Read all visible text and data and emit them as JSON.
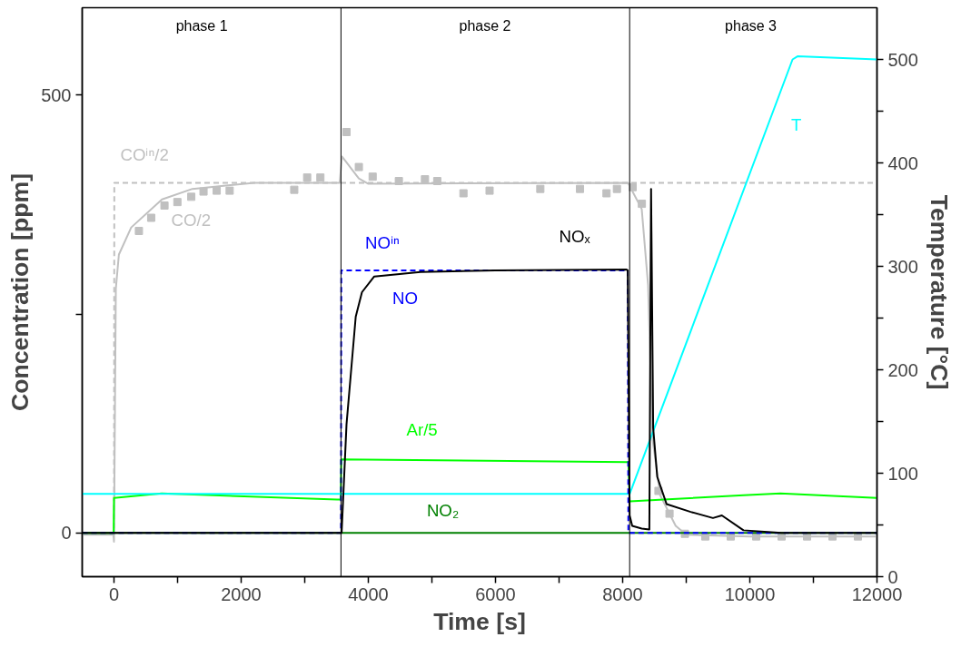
{
  "chart_data": {
    "type": "line",
    "xlabel": "Time [s]",
    "ylabel": "Concentration [ppm]",
    "y2label": "Temperature [°C]",
    "xlim": [
      -500,
      12000
    ],
    "xticks": [
      0,
      2000,
      4000,
      6000,
      8000,
      10000,
      12000,
      {
        "value": 1000,
        "label": null
      },
      {
        "value": 3000,
        "label": null
      },
      {
        "value": 5000,
        "label": null
      },
      {
        "value": 7000,
        "label": null
      },
      {
        "value": 9000,
        "label": null
      },
      {
        "value": 11000,
        "label": null
      }
    ],
    "ylim": [
      -50,
      600
    ],
    "yticks": [
      0,
      500,
      {
        "value": 250,
        "label": null
      }
    ],
    "y2lim": [
      0,
      550
    ],
    "y2ticks": [
      0,
      100,
      200,
      300,
      400,
      500,
      {
        "value": 50,
        "label": null
      },
      {
        "value": 150,
        "label": null
      },
      {
        "value": 250,
        "label": null
      },
      {
        "value": 350,
        "label": null
      },
      {
        "value": 450,
        "label": null
      }
    ],
    "grid": false,
    "series": [
      {
        "name": "COⁱⁿ/2",
        "color": "#c0c0c0",
        "line_style": "dashed",
        "x": [
          -500,
          0,
          5,
          12000
        ],
        "values": [
          0,
          0,
          400,
          400
        ]
      },
      {
        "name": "CO/2",
        "color": "#c0c0c0",
        "x": [
          -500,
          -10,
          0,
          29,
          77,
          271,
          755,
          1234,
          2206,
          3550,
          3585,
          3850,
          3995,
          8084,
          8300,
          8400,
          8470,
          8590,
          8834,
          9000,
          10000,
          12000
        ],
        "values": [
          -2,
          -2,
          -10,
          279,
          318,
          349,
          381,
          393,
          400,
          400,
          430,
          405,
          399,
          400,
          370,
          283,
          107,
          43,
          8,
          -2,
          -4,
          -4
        ]
      },
      {
        "type": "scatter",
        "marker": "square",
        "color": "#c0c0c0",
        "x": [
          392,
          585,
          794,
          997,
          1215,
          1408,
          1615,
          1819,
          2835,
          3038,
          3246,
          3657,
          3851,
          4068,
          4480,
          4891,
          5084,
          5496,
          5907,
          6705,
          7329,
          7746,
          7910,
          8157,
          8302,
          8563,
          8737,
          8979,
          9300,
          9700,
          10100,
          10500,
          10900,
          11300,
          11700
        ],
        "values": [
          345,
          360,
          374,
          378,
          384,
          390,
          391,
          391,
          392,
          406,
          406,
          458,
          418,
          407,
          402,
          404,
          402,
          388,
          391,
          393,
          393,
          388,
          393,
          395,
          376,
          48,
          22,
          -1,
          -4,
          -4,
          -4,
          -4,
          -4,
          -4,
          -4
        ]
      },
      {
        "name": "NO₂",
        "color": "#008000",
        "x": [
          -500,
          12000
        ],
        "values": [
          0,
          0
        ]
      },
      {
        "name": "Ar/5",
        "color": "#00ff00",
        "x": [
          -500,
          -5,
          0,
          750,
          3510,
          3565,
          3575,
          8070,
          8090,
          8110,
          9900,
          10480,
          12000
        ],
        "values": [
          0,
          0,
          40,
          45,
          38,
          38,
          84,
          81,
          81,
          36,
          43,
          45,
          40
        ]
      },
      {
        "name": "T",
        "color": "#00ffff",
        "axis": "y2",
        "x": [
          -500,
          8110,
          10672,
          10750,
          12000
        ],
        "values": [
          80,
          80,
          500,
          503,
          500
        ]
      },
      {
        "name": "NOⁱⁿ",
        "color": "#0000ff",
        "line_style": "dashed",
        "x": [
          -500,
          3570,
          3575,
          8080,
          8090,
          12000
        ],
        "values": [
          0,
          0,
          300,
          300,
          0,
          0
        ]
      },
      {
        "name": "NOₓ",
        "color": "#000000",
        "x": [
          -500,
          3580,
          3657,
          3802,
          3900,
          4093,
          4819,
          6000,
          8055,
          8080,
          8110,
          8150,
          8300,
          8420,
          8447,
          8480,
          8544,
          8690,
          9070,
          9420,
          9560,
          9900,
          10500,
          12000
        ],
        "values": [
          0,
          0,
          124,
          247,
          275,
          293,
          298,
          300,
          301,
          300,
          20,
          8,
          5,
          4,
          393,
          120,
          64,
          33,
          24,
          17,
          20,
          3,
          0,
          0
        ]
      }
    ],
    "ref_lines": [
      {
        "axis": "x",
        "value": 3570,
        "color": "#000000"
      },
      {
        "axis": "x",
        "value": 8110,
        "color": "#000000"
      }
    ],
    "annotations": [
      "phase 1",
      "phase 2",
      "phase 3",
      "NO"
    ]
  }
}
